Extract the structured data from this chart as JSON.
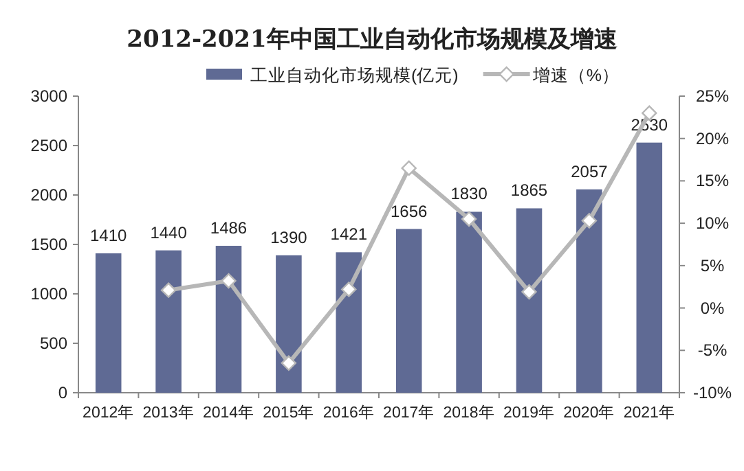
{
  "chart_data": {
    "type": "bar",
    "title": "2012-2021年中国工业自动化市场规模及增速",
    "categories": [
      "2012年",
      "2013年",
      "2014年",
      "2015年",
      "2016年",
      "2017年",
      "2018年",
      "2019年",
      "2020年",
      "2021年"
    ],
    "series": [
      {
        "name": "工业自动化市场规模(亿元)",
        "color": "#5f6a94",
        "values": [
          1410,
          1440,
          1486,
          1390,
          1421,
          1656,
          1830,
          1865,
          2057,
          2530
        ],
        "data_labels": true
      },
      {
        "name": "增速（%）",
        "type": "line",
        "axis": "y2",
        "color": "#b7b7b7",
        "marker": "diamond",
        "values": [
          null,
          2.1,
          3.2,
          -6.5,
          2.2,
          16.5,
          10.5,
          1.9,
          10.3,
          23.0
        ]
      }
    ],
    "ylim": [
      0,
      3000
    ],
    "yticks": [
      0,
      500,
      1000,
      1500,
      2000,
      2500,
      3000
    ],
    "y2lim": [
      -10,
      25
    ],
    "y2ticks": [
      {
        "value": -10,
        "label": "-10%"
      },
      {
        "value": -5,
        "label": "-5%"
      },
      {
        "value": 0,
        "label": "0%"
      },
      {
        "value": 5,
        "label": "5%"
      },
      {
        "value": 10,
        "label": "10%"
      },
      {
        "value": 15,
        "label": "15%"
      },
      {
        "value": 20,
        "label": "20%"
      },
      {
        "value": 25,
        "label": "25%"
      }
    ],
    "legend": "top",
    "grid": false
  }
}
